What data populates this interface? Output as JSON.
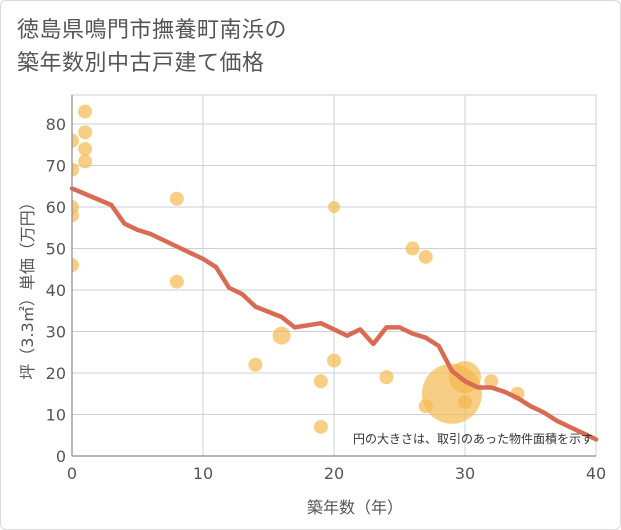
{
  "title": "徳島県鳴門市撫養町南浜の\n築年数別中古戸建て価格",
  "chart_data": {
    "type": "scatter",
    "xlabel": "築年数（年）",
    "ylabel": "坪（3.3㎡）単価（万円）",
    "xlim": [
      0,
      40
    ],
    "ylim": [
      0,
      87
    ],
    "xticks": [
      0,
      10,
      20,
      30,
      40
    ],
    "yticks": [
      0,
      10,
      20,
      30,
      40,
      50,
      60,
      70,
      80
    ],
    "note": "円の大きさは、取引のあった物件面積を示す",
    "colors": {
      "bubble": "#f5b74a",
      "line": "#d86b54",
      "grid": "#c9d2dc"
    },
    "scatter": [
      {
        "x": 0,
        "y": 76,
        "r": 7
      },
      {
        "x": 0,
        "y": 69,
        "r": 7
      },
      {
        "x": 0,
        "y": 60,
        "r": 7
      },
      {
        "x": 0,
        "y": 58,
        "r": 7
      },
      {
        "x": 0,
        "y": 46,
        "r": 7
      },
      {
        "x": 1,
        "y": 83,
        "r": 7
      },
      {
        "x": 1,
        "y": 78,
        "r": 7
      },
      {
        "x": 1,
        "y": 74,
        "r": 7
      },
      {
        "x": 1,
        "y": 71,
        "r": 7
      },
      {
        "x": 8,
        "y": 62,
        "r": 7
      },
      {
        "x": 8,
        "y": 42,
        "r": 7
      },
      {
        "x": 14,
        "y": 22,
        "r": 7
      },
      {
        "x": 16,
        "y": 29,
        "r": 9
      },
      {
        "x": 19,
        "y": 18,
        "r": 7
      },
      {
        "x": 19,
        "y": 7,
        "r": 7
      },
      {
        "x": 20,
        "y": 60,
        "r": 6
      },
      {
        "x": 20,
        "y": 23,
        "r": 7
      },
      {
        "x": 24,
        "y": 19,
        "r": 7
      },
      {
        "x": 26,
        "y": 50,
        "r": 7
      },
      {
        "x": 27,
        "y": 48,
        "r": 7
      },
      {
        "x": 27,
        "y": 12,
        "r": 7
      },
      {
        "x": 29,
        "y": 15,
        "r": 30
      },
      {
        "x": 30,
        "y": 19,
        "r": 16
      },
      {
        "x": 30,
        "y": 13,
        "r": 7
      },
      {
        "x": 32,
        "y": 18,
        "r": 7
      },
      {
        "x": 34,
        "y": 15,
        "r": 7
      }
    ],
    "series": [
      {
        "name": "trend",
        "x": [
          0,
          3,
          4,
          5,
          6,
          8,
          10,
          11,
          12,
          13,
          14,
          16,
          17,
          19,
          20,
          21,
          22,
          23,
          24,
          25,
          26,
          27,
          28,
          29,
          30,
          31,
          32,
          33,
          34,
          35,
          36,
          37,
          38,
          39,
          40
        ],
        "y": [
          64.5,
          60.5,
          56,
          54.5,
          53.5,
          50.5,
          47.5,
          45.5,
          40.5,
          39,
          36,
          33.5,
          31,
          32,
          30.5,
          29,
          30.5,
          27,
          31,
          31,
          29.5,
          28.5,
          26.5,
          20.5,
          18,
          16.5,
          16.5,
          15.5,
          14,
          12,
          10.5,
          8.5,
          7,
          5.5,
          4
        ]
      }
    ]
  }
}
